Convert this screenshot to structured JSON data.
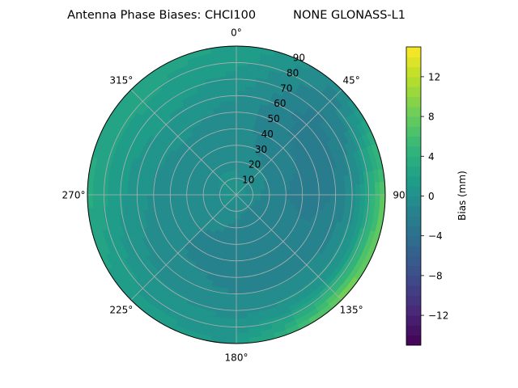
{
  "chart_data": {
    "type": "heatmap",
    "projection": "polar",
    "title": "Antenna Phase Biases: CHCI100          NONE GLONASS-L1",
    "angular_axis": {
      "zero_location": "N",
      "direction": "clockwise",
      "tick_values": [
        0,
        45,
        90,
        135,
        180,
        225,
        270,
        315
      ],
      "tick_labels": [
        "0°",
        "45°",
        "90",
        "135°",
        "180°",
        "225°",
        "270°",
        "315°"
      ]
    },
    "radial_axis": {
      "range": [
        0,
        90
      ],
      "tick_values": [
        10,
        20,
        30,
        40,
        50,
        60,
        70,
        80,
        90
      ],
      "tick_labels": [
        "10",
        "20",
        "30",
        "40",
        "50",
        "60",
        "70",
        "80",
        "90"
      ],
      "label_angle_deg": 22.5
    },
    "grid": true,
    "colorbar": {
      "label": "Bias (mm)",
      "range": [
        -15,
        15
      ],
      "tick_values": [
        -12,
        -8,
        -4,
        0,
        4,
        8,
        12
      ],
      "tick_labels": [
        "−12",
        "−8",
        "−4",
        "0",
        "4",
        "8",
        "12"
      ],
      "levels": 30,
      "colormap": "viridis"
    },
    "bias_field": {
      "azimuth_deg": [
        0,
        45,
        90,
        135,
        180,
        225,
        270,
        315
      ],
      "zenith_deg": [
        0,
        15,
        30,
        45,
        60,
        75,
        90
      ],
      "values_mm": [
        [
          0.0,
          0.5,
          0.5,
          0.0,
          0.0,
          0.5,
          0.5,
          0.5
        ],
        [
          0.0,
          -0.5,
          -1.0,
          -1.5,
          -1.0,
          -0.5,
          -0.5,
          0.0
        ],
        [
          -0.5,
          -1.5,
          -2.0,
          -1.5,
          -1.5,
          -1.0,
          -1.0,
          -0.5
        ],
        [
          -0.5,
          -2.0,
          -2.5,
          -1.5,
          -1.5,
          -1.0,
          -0.5,
          0.0
        ],
        [
          0.0,
          -2.5,
          -2.0,
          -1.0,
          -1.0,
          -0.5,
          0.5,
          1.0
        ],
        [
          1.0,
          -2.0,
          0.5,
          1.0,
          0.0,
          0.5,
          1.5,
          2.0
        ],
        [
          2.0,
          -1.0,
          8.0,
          9.0,
          1.0,
          1.5,
          3.5,
          2.5
        ]
      ]
    }
  }
}
